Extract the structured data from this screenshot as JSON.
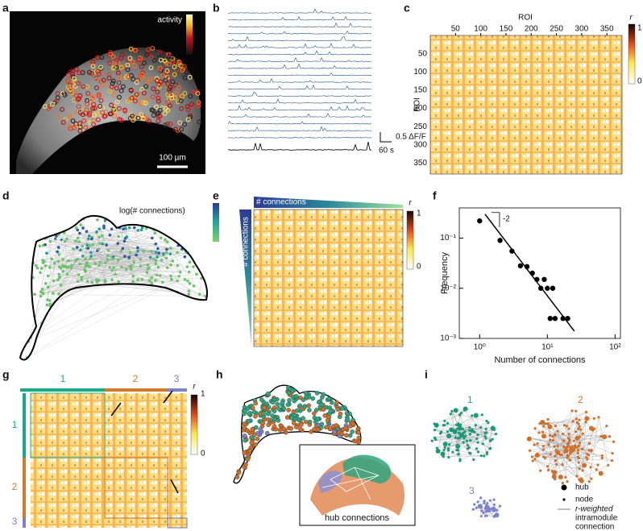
{
  "panels": {
    "a": {
      "label": "a",
      "colorbar_label": "activity",
      "scale_bar": "100 µm"
    },
    "b": {
      "label": "b",
      "scale_y": "0.5 ΔF/F",
      "scale_x": "60 s"
    },
    "c": {
      "label": "c",
      "x_axis_label": "ROI",
      "y_axis_label": "ROI",
      "xticks": [
        50,
        100,
        150,
        200,
        250,
        300,
        350
      ],
      "yticks": [
        50,
        100,
        150,
        200,
        250,
        300,
        350
      ],
      "colorbar_label": "r",
      "colorbar_max": 1,
      "colorbar_min": 0
    },
    "d": {
      "label": "d",
      "colorbar_label": "log(# connections)"
    },
    "e": {
      "label": "e",
      "top_label": "# connections",
      "side_label": "# connections",
      "colorbar_label": "r",
      "colorbar_max": 1,
      "colorbar_min": 0
    },
    "g": {
      "label": "g",
      "modules": [
        "1",
        "2",
        "3"
      ],
      "colorbar_label": "r",
      "colorbar_max": 1,
      "colorbar_min": 0
    },
    "h": {
      "label": "h",
      "inset_label": "hub connections"
    },
    "i": {
      "label": "i",
      "modules": [
        "1",
        "2",
        "3"
      ],
      "legend": [
        "hub",
        "node",
        "r-weighted",
        "intramodule",
        "connection"
      ]
    }
  },
  "chart_data": {
    "type": "scatter",
    "label": "f",
    "xlabel": "Number of connections",
    "ylabel": "Frequency",
    "annotation": "-2",
    "log_x": true,
    "log_y": true,
    "color": "#000000",
    "xlim": [
      0.5,
      120
    ],
    "ylim": [
      0.001,
      0.4
    ],
    "xticks": [
      {
        "value": 1,
        "label": "10⁰"
      },
      {
        "value": 10,
        "label": "10¹"
      },
      {
        "value": 100,
        "label": "10²"
      }
    ],
    "yticks": [
      {
        "value": 0.001,
        "label": "10⁻³"
      },
      {
        "value": 0.01,
        "label": "10⁻²"
      },
      {
        "value": 0.1,
        "label": "10⁻¹"
      }
    ],
    "x": [
      1,
      2,
      3,
      4,
      5,
      6,
      7,
      8,
      9,
      10,
      11,
      12,
      13,
      17,
      20
    ],
    "values": [
      0.22,
      0.09,
      0.055,
      0.028,
      0.027,
      0.02,
      0.015,
      0.01,
      0.015,
      0.01,
      0.0025,
      0.01,
      0.0025,
      0.0025,
      0.0025
    ],
    "fit": {
      "x": [
        1.2,
        25
      ],
      "values": [
        0.3,
        0.0014
      ]
    }
  }
}
